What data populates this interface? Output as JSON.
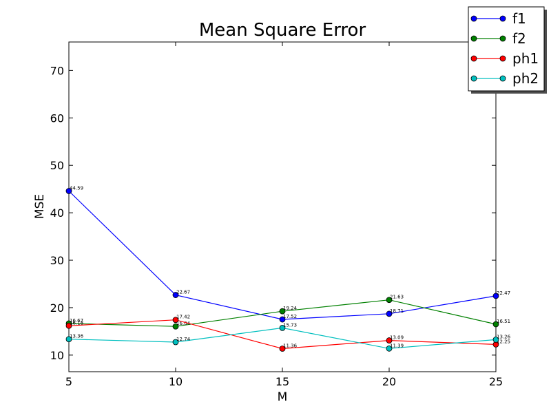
{
  "chart_data": {
    "type": "line",
    "title": "Mean Square Error",
    "xlabel": "M",
    "ylabel": "MSE",
    "x": [
      5,
      10,
      15,
      20,
      25
    ],
    "xlim": [
      5,
      25
    ],
    "ylim": [
      6.5,
      76
    ],
    "xticks": [
      5,
      10,
      15,
      20,
      25
    ],
    "yticks": [
      10,
      20,
      30,
      40,
      50,
      60,
      70
    ],
    "grid": false,
    "legend": "top-right",
    "series": [
      {
        "name": "f1",
        "color": "#0000ff",
        "values": [
          44.59,
          22.67,
          17.52,
          18.71,
          22.47
        ],
        "labels": [
          "44.59",
          "22.67",
          "17.52",
          "18.71",
          "22.47"
        ]
      },
      {
        "name": "f2",
        "color": "#008000",
        "values": [
          16.67,
          16.04,
          19.24,
          21.63,
          16.51
        ],
        "labels": [
          "16.67",
          "16.04",
          "19.24",
          "21.63",
          "16.51"
        ]
      },
      {
        "name": "ph1",
        "color": "#ff0000",
        "values": [
          16.18,
          17.42,
          11.36,
          13.09,
          12.25
        ],
        "labels": [
          "16.18",
          "17.42",
          "11.36",
          "13.09",
          "12.25"
        ]
      },
      {
        "name": "ph2",
        "color": "#00bfbf",
        "values": [
          13.36,
          12.74,
          15.73,
          11.39,
          13.26
        ],
        "labels": [
          "13.36",
          "12.74",
          "15.73",
          "11.39",
          "13.26"
        ]
      }
    ]
  }
}
